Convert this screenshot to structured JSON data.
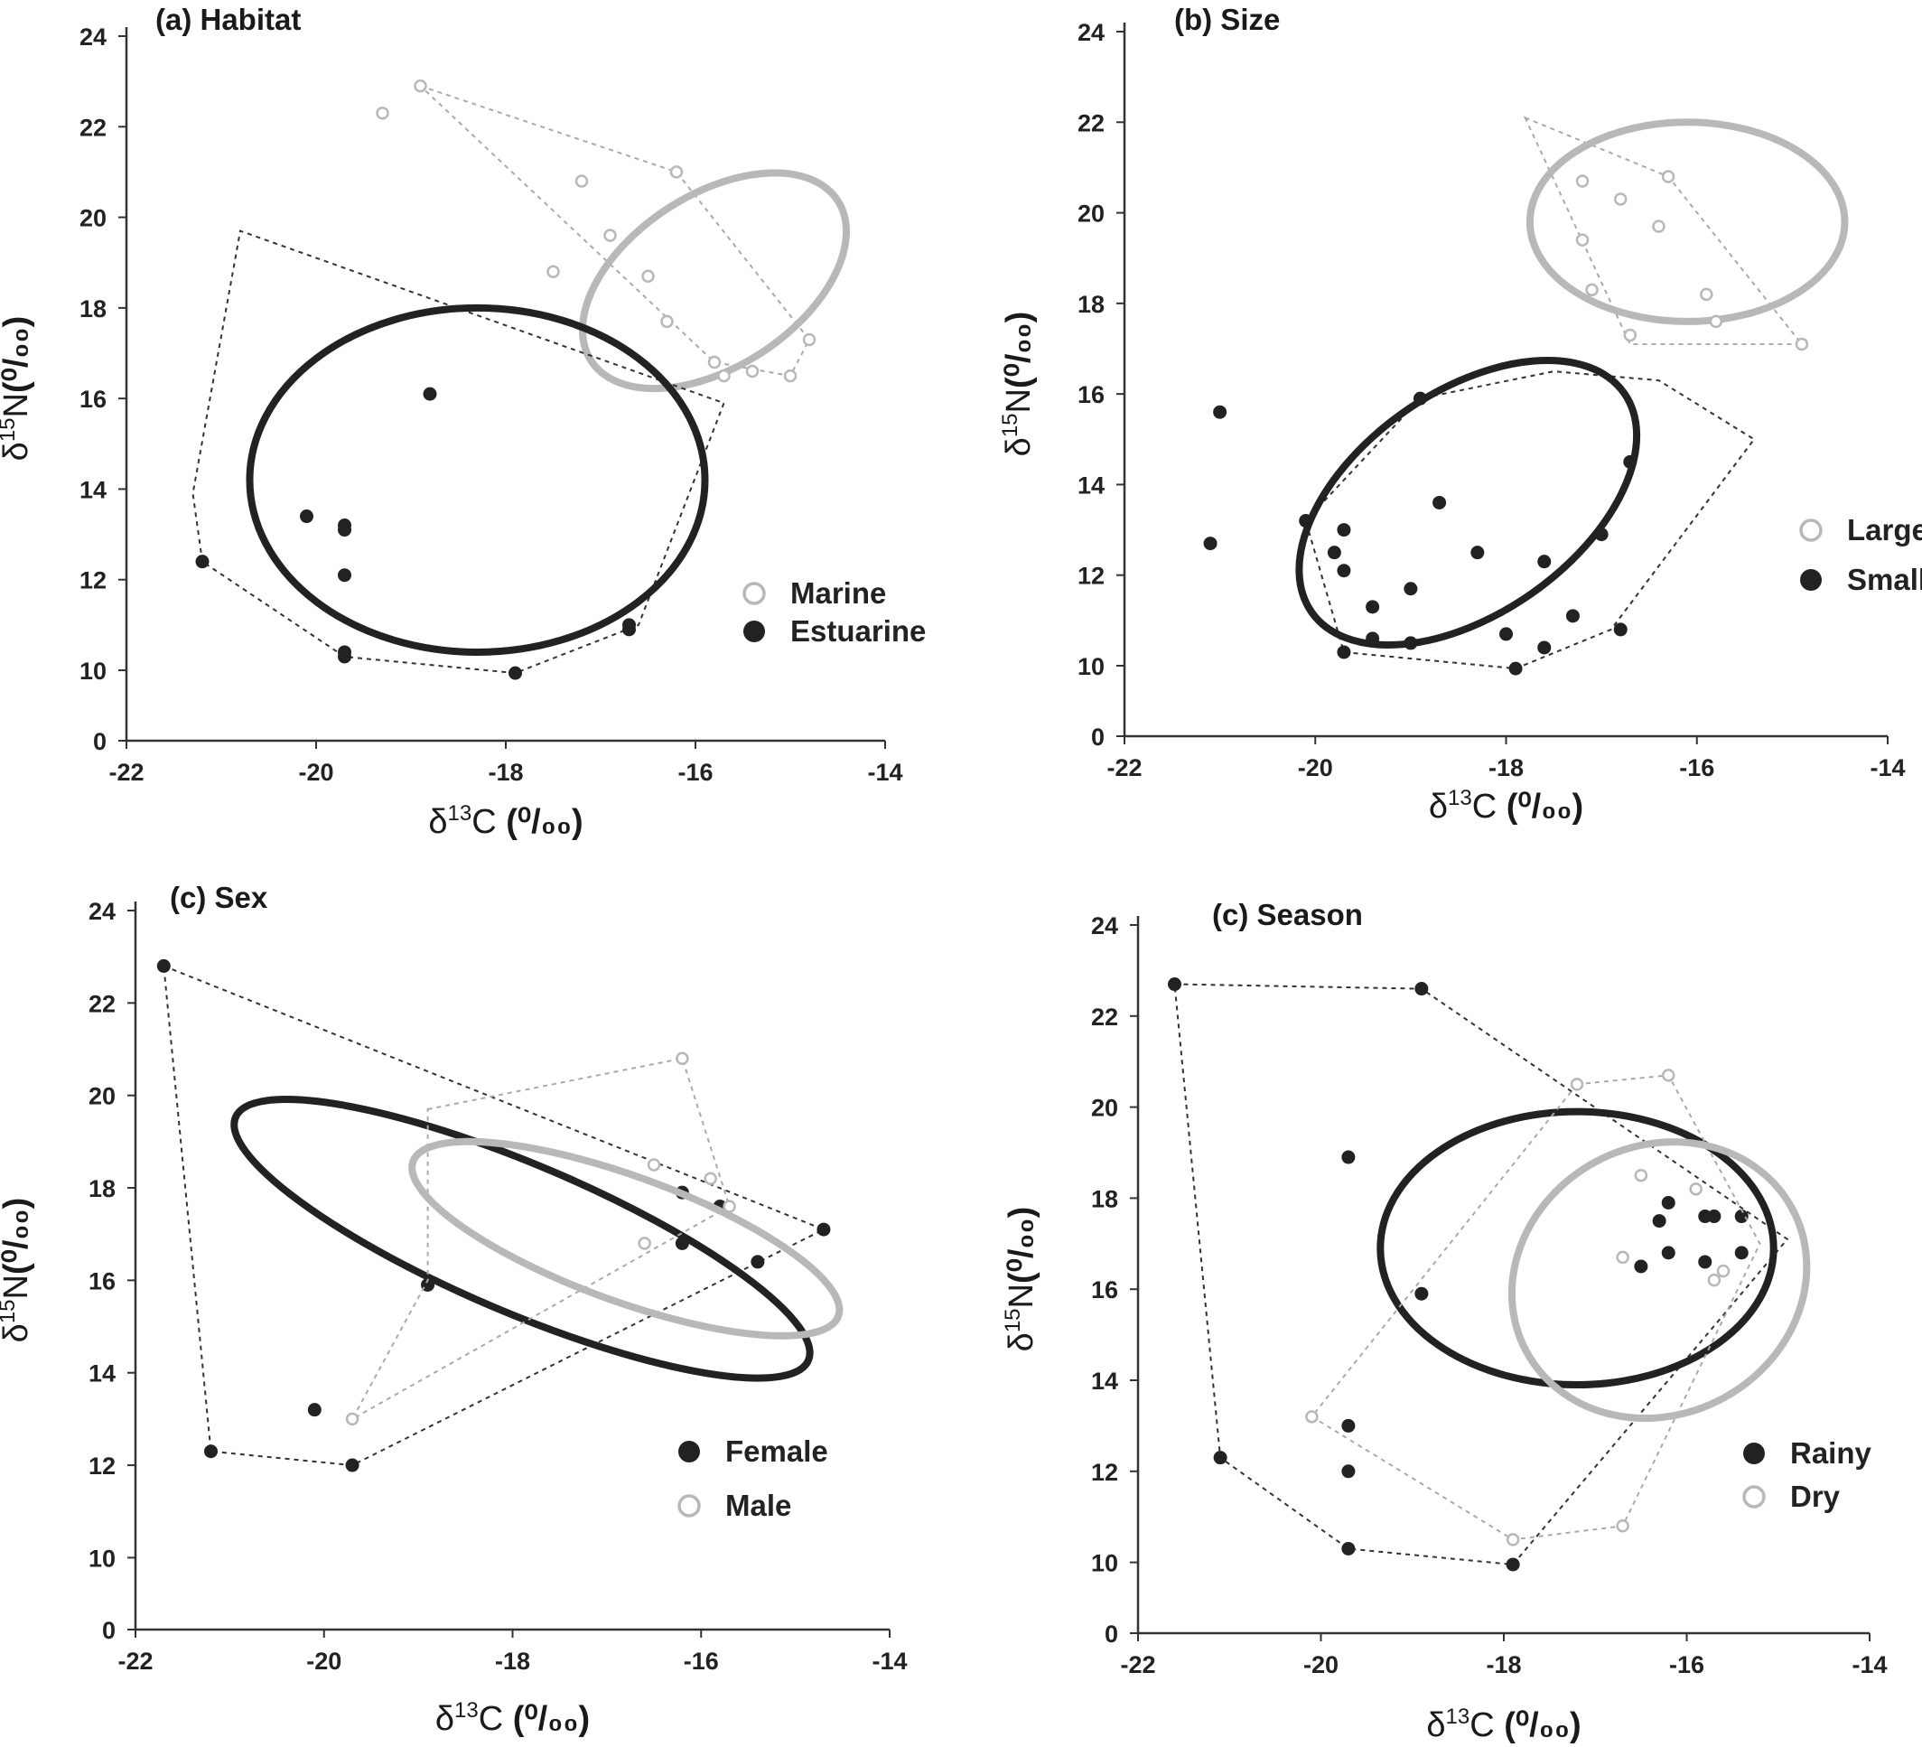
{
  "axis_text": {
    "x_prefix": "δ",
    "x_sup": "13",
    "x_element": "C",
    "y_prefix": "δ",
    "y_sup": "15",
    "y_element": "N",
    "unit": "(⁰/₀₀)"
  },
  "colors": {
    "dark": "#222222",
    "light": "#b8b8b8"
  },
  "chart_data": [
    {
      "type": "scatter",
      "title": "(a) Habitat",
      "xlim": [
        -22,
        -14
      ],
      "ylim": [
        0,
        24
      ],
      "x_ticks": [
        -22,
        -20,
        -18,
        -16,
        -14
      ],
      "y_ticks": [
        0,
        10,
        12,
        14,
        16,
        18,
        20,
        22,
        24
      ],
      "legend_position": "bottom-right",
      "series": [
        {
          "name": "Marine",
          "style": "light-open",
          "points": [
            [
              -18.9,
              22.9
            ],
            [
              -19.3,
              22.3
            ],
            [
              -17.2,
              20.8
            ],
            [
              -16.2,
              21.0
            ],
            [
              -16.9,
              19.6
            ],
            [
              -17.5,
              18.8
            ],
            [
              -16.5,
              18.7
            ],
            [
              -16.3,
              17.7
            ],
            [
              -14.8,
              17.3
            ],
            [
              -15.8,
              16.8
            ],
            [
              -15.7,
              16.5
            ],
            [
              -15.4,
              16.6
            ],
            [
              -15.0,
              16.5
            ]
          ],
          "hull": [
            [
              -18.9,
              22.9
            ],
            [
              -16.2,
              21.0
            ],
            [
              -14.8,
              17.3
            ],
            [
              -15.0,
              16.5
            ],
            [
              -15.8,
              16.8
            ]
          ],
          "ellipse": {
            "cx": -15.8,
            "cy": 18.6,
            "rx": 1.55,
            "ry": 1.9,
            "rot": 33
          }
        },
        {
          "name": "Estuarine",
          "style": "dark-filled",
          "points": [
            [
              -18.8,
              16.1
            ],
            [
              -20.1,
              13.4
            ],
            [
              -19.7,
              13.2
            ],
            [
              -19.7,
              13.1
            ],
            [
              -19.7,
              12.1
            ],
            [
              -21.2,
              12.4
            ],
            [
              -19.7,
              10.3
            ],
            [
              -19.7,
              10.4
            ],
            [
              -16.7,
              11.0
            ],
            [
              -16.7,
              10.9
            ],
            [
              -17.9,
              9.6
            ]
          ],
          "hull": [
            [
              -21.2,
              12.4
            ],
            [
              -21.3,
              13.9
            ],
            [
              -20.8,
              19.7
            ],
            [
              -15.7,
              15.9
            ],
            [
              -16.6,
              11.0
            ],
            [
              -17.9,
              9.6
            ],
            [
              -19.7,
              10.3
            ]
          ],
          "ellipse": {
            "cx": -18.3,
            "cy": 14.2,
            "rx": 2.4,
            "ry": 3.8,
            "rot": 0
          }
        }
      ]
    },
    {
      "type": "scatter",
      "title": "(b) Size",
      "xlim": [
        -22,
        -14
      ],
      "ylim": [
        0,
        24
      ],
      "x_ticks": [
        -22,
        -20,
        -18,
        -16,
        -14
      ],
      "y_ticks": [
        0,
        10,
        12,
        14,
        16,
        18,
        20,
        22,
        24
      ],
      "legend_position": "right",
      "series": [
        {
          "name": "Large",
          "style": "light-open",
          "points": [
            [
              -17.2,
              20.7
            ],
            [
              -16.8,
              20.3
            ],
            [
              -16.3,
              20.8
            ],
            [
              -17.2,
              19.4
            ],
            [
              -16.4,
              19.7
            ],
            [
              -17.1,
              18.3
            ],
            [
              -15.9,
              18.2
            ],
            [
              -16.7,
              17.3
            ],
            [
              -15.8,
              17.6
            ],
            [
              -14.9,
              17.1
            ]
          ],
          "hull": [
            [
              -17.8,
              22.1
            ],
            [
              -16.3,
              20.8
            ],
            [
              -14.9,
              17.1
            ],
            [
              -16.7,
              17.1
            ]
          ],
          "ellipse": {
            "cx": -16.1,
            "cy": 19.8,
            "rx": 1.65,
            "ry": 2.2,
            "rot": 0
          }
        },
        {
          "name": "Small",
          "style": "dark-filled",
          "points": [
            [
              -21.0,
              15.6
            ],
            [
              -18.9,
              15.9
            ],
            [
              -16.7,
              14.5
            ],
            [
              -18.7,
              13.6
            ],
            [
              -20.1,
              13.2
            ],
            [
              -19.7,
              13.0
            ],
            [
              -21.1,
              12.7
            ],
            [
              -19.8,
              12.5
            ],
            [
              -19.7,
              12.1
            ],
            [
              -18.3,
              12.5
            ],
            [
              -17.6,
              12.3
            ],
            [
              -17.0,
              12.9
            ],
            [
              -19.4,
              11.3
            ],
            [
              -19.0,
              11.7
            ],
            [
              -17.3,
              11.1
            ],
            [
              -19.4,
              10.6
            ],
            [
              -19.0,
              10.5
            ],
            [
              -18.0,
              10.7
            ],
            [
              -17.6,
              10.4
            ],
            [
              -16.8,
              10.8
            ],
            [
              -19.7,
              10.3
            ],
            [
              -17.9,
              9.6
            ]
          ],
          "hull": [
            [
              -20.1,
              13.2
            ],
            [
              -18.9,
              15.9
            ],
            [
              -17.5,
              16.5
            ],
            [
              -16.4,
              16.3
            ],
            [
              -15.4,
              15.0
            ],
            [
              -16.9,
              10.8
            ],
            [
              -17.9,
              9.6
            ],
            [
              -19.7,
              10.3
            ]
          ],
          "ellipse": {
            "cx": -18.4,
            "cy": 13.6,
            "rx": 2.0,
            "ry": 2.45,
            "rot": 35
          }
        }
      ]
    },
    {
      "type": "scatter",
      "title": "(c) Sex",
      "xlim": [
        -22,
        -14
      ],
      "ylim": [
        0,
        24
      ],
      "x_ticks": [
        -22,
        -20,
        -18,
        -16,
        -14
      ],
      "y_ticks": [
        0,
        10,
        12,
        14,
        16,
        18,
        20,
        22,
        24
      ],
      "legend_position": "bottom-right",
      "series": [
        {
          "name": "Female",
          "style": "dark-filled",
          "points": [
            [
              -21.7,
              22.8
            ],
            [
              -16.2,
              17.9
            ],
            [
              -15.8,
              17.6
            ],
            [
              -16.2,
              16.8
            ],
            [
              -15.4,
              16.4
            ],
            [
              -14.7,
              17.1
            ],
            [
              -18.9,
              15.9
            ],
            [
              -20.1,
              13.2
            ],
            [
              -21.2,
              12.3
            ],
            [
              -19.7,
              12.0
            ]
          ],
          "hull": [
            [
              -21.7,
              22.8
            ],
            [
              -14.7,
              17.1
            ],
            [
              -19.7,
              12.0
            ],
            [
              -21.2,
              12.3
            ]
          ],
          "ellipse": {
            "cx": -17.9,
            "cy": 16.9,
            "rx": 3.3,
            "ry": 1.6,
            "rot": -23
          }
        },
        {
          "name": "Male",
          "style": "light-open",
          "points": [
            [
              -16.2,
              20.8
            ],
            [
              -16.5,
              18.5
            ],
            [
              -15.9,
              18.2
            ],
            [
              -15.7,
              17.6
            ],
            [
              -16.6,
              16.8
            ],
            [
              -19.7,
              13.0
            ]
          ],
          "hull": [
            [
              -18.9,
              19.7
            ],
            [
              -16.2,
              20.8
            ],
            [
              -15.7,
              17.6
            ],
            [
              -19.7,
              13.0
            ],
            [
              -18.9,
              16.0
            ]
          ],
          "ellipse": {
            "cx": -16.8,
            "cy": 16.9,
            "rx": 2.4,
            "ry": 1.35,
            "rot": -20
          }
        }
      ]
    },
    {
      "type": "scatter",
      "title": "(c) Season",
      "xlim": [
        -22,
        -14
      ],
      "ylim": [
        0,
        24
      ],
      "x_ticks": [
        -22,
        -20,
        -18,
        -16,
        -14
      ],
      "y_ticks": [
        0,
        10,
        12,
        14,
        16,
        18,
        20,
        22,
        24
      ],
      "legend_position": "bottom-right",
      "series": [
        {
          "name": "Rainy",
          "style": "dark-filled",
          "points": [
            [
              -21.6,
              22.7
            ],
            [
              -18.9,
              22.6
            ],
            [
              -19.7,
              18.9
            ],
            [
              -16.2,
              17.9
            ],
            [
              -16.3,
              17.5
            ],
            [
              -15.8,
              17.6
            ],
            [
              -15.7,
              17.6
            ],
            [
              -15.4,
              17.6
            ],
            [
              -16.2,
              16.8
            ],
            [
              -16.5,
              16.5
            ],
            [
              -15.8,
              16.6
            ],
            [
              -15.4,
              16.8
            ],
            [
              -18.9,
              15.9
            ],
            [
              -19.7,
              13.0
            ],
            [
              -19.7,
              12.0
            ],
            [
              -21.1,
              12.3
            ],
            [
              -19.7,
              10.3
            ],
            [
              -17.9,
              9.7
            ]
          ],
          "hull": [
            [
              -21.6,
              22.7
            ],
            [
              -18.9,
              22.6
            ],
            [
              -14.9,
              17.1
            ],
            [
              -17.9,
              9.7
            ],
            [
              -19.7,
              10.3
            ],
            [
              -21.1,
              12.3
            ]
          ],
          "ellipse": {
            "cx": -17.2,
            "cy": 16.9,
            "rx": 2.15,
            "ry": 3.0,
            "rot": 0
          }
        },
        {
          "name": "Dry",
          "style": "light-open",
          "points": [
            [
              -17.2,
              20.5
            ],
            [
              -16.2,
              20.7
            ],
            [
              -16.5,
              18.5
            ],
            [
              -15.9,
              18.2
            ],
            [
              -16.7,
              16.7
            ],
            [
              -15.7,
              16.2
            ],
            [
              -15.6,
              16.4
            ],
            [
              -20.1,
              13.2
            ],
            [
              -16.7,
              10.8
            ],
            [
              -17.9,
              10.5
            ]
          ],
          "hull": [
            [
              -17.2,
              20.5
            ],
            [
              -16.2,
              20.7
            ],
            [
              -15.2,
              17.0
            ],
            [
              -16.7,
              10.8
            ],
            [
              -17.9,
              10.5
            ],
            [
              -20.1,
              13.2
            ]
          ],
          "ellipse": {
            "cx": -16.3,
            "cy": 16.2,
            "rx": 1.65,
            "ry": 2.95,
            "rot": 28
          }
        }
      ]
    }
  ]
}
